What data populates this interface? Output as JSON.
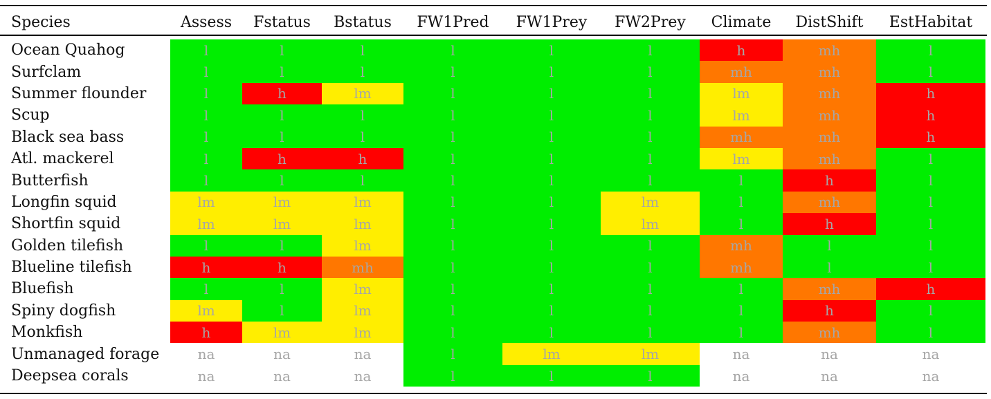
{
  "table": {
    "columns": [
      "Species",
      "Assess",
      "Fstatus",
      "Bstatus",
      "FW1Pred",
      "FW1Prey",
      "FW2Prey",
      "Climate",
      "DistShift",
      "EstHabitat"
    ],
    "rows": [
      {
        "species": "Ocean Quahog",
        "values": [
          "l",
          "l",
          "l",
          "l",
          "l",
          "l",
          "h",
          "mh",
          "l"
        ]
      },
      {
        "species": "Surfclam",
        "values": [
          "l",
          "l",
          "l",
          "l",
          "l",
          "l",
          "mh",
          "mh",
          "l"
        ]
      },
      {
        "species": "Summer flounder",
        "values": [
          "l",
          "h",
          "lm",
          "l",
          "l",
          "l",
          "lm",
          "mh",
          "h"
        ]
      },
      {
        "species": "Scup",
        "values": [
          "l",
          "l",
          "l",
          "l",
          "l",
          "l",
          "lm",
          "mh",
          "h"
        ]
      },
      {
        "species": "Black sea bass",
        "values": [
          "l",
          "l",
          "l",
          "l",
          "l",
          "l",
          "mh",
          "mh",
          "h"
        ]
      },
      {
        "species": "Atl. mackerel",
        "values": [
          "l",
          "h",
          "h",
          "l",
          "l",
          "l",
          "lm",
          "mh",
          "l"
        ]
      },
      {
        "species": "Butterfish",
        "values": [
          "l",
          "l",
          "l",
          "l",
          "l",
          "l",
          "l",
          "h",
          "l"
        ]
      },
      {
        "species": "Longfin squid",
        "values": [
          "lm",
          "lm",
          "lm",
          "l",
          "l",
          "lm",
          "l",
          "mh",
          "l"
        ]
      },
      {
        "species": "Shortfin squid",
        "values": [
          "lm",
          "lm",
          "lm",
          "l",
          "l",
          "lm",
          "l",
          "h",
          "l"
        ]
      },
      {
        "species": "Golden tilefish",
        "values": [
          "l",
          "l",
          "lm",
          "l",
          "l",
          "l",
          "mh",
          "l",
          "l"
        ]
      },
      {
        "species": "Blueline tilefish",
        "values": [
          "h",
          "h",
          "mh",
          "l",
          "l",
          "l",
          "mh",
          "l",
          "l"
        ]
      },
      {
        "species": "Bluefish",
        "values": [
          "l",
          "l",
          "lm",
          "l",
          "l",
          "l",
          "l",
          "mh",
          "h"
        ]
      },
      {
        "species": "Spiny dogfish",
        "values": [
          "lm",
          "l",
          "lm",
          "l",
          "l",
          "l",
          "l",
          "h",
          "l"
        ]
      },
      {
        "species": "Monkfish",
        "values": [
          "h",
          "lm",
          "lm",
          "l",
          "l",
          "l",
          "l",
          "mh",
          "l"
        ]
      },
      {
        "species": "Unmanaged forage",
        "values": [
          "na",
          "na",
          "na",
          "l",
          "lm",
          "lm",
          "na",
          "na",
          "na"
        ]
      },
      {
        "species": "Deepsea corals",
        "values": [
          "na",
          "na",
          "na",
          "l",
          "l",
          "l",
          "na",
          "na",
          "na"
        ]
      }
    ]
  },
  "colors": {
    "l": "#00ee00",
    "lm": "#ffee00",
    "mh": "#ff7700",
    "h": "#ff0000",
    "na": "#ffffff"
  }
}
